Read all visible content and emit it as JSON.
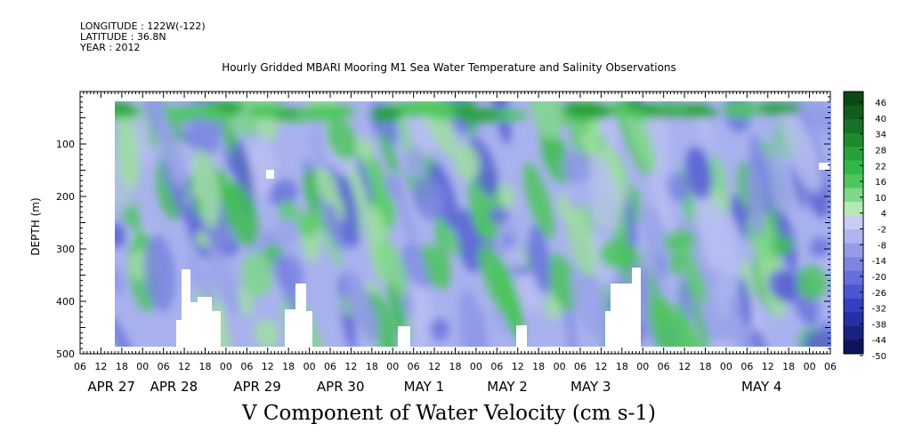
{
  "meta": {
    "longitude": "LONGITUDE : 122W(-122)",
    "latitude": "LATITUDE : 36.8N",
    "year": "YEAR : 2012"
  },
  "chart_data": {
    "type": "heatmap",
    "title": "Hourly Gridded MBARI Mooring M1 Sea Water Temperature and Salinity Observations",
    "xlabel": "V Component of Water Velocity (cm s-1)",
    "ylabel": "DEPTH (m)",
    "y_ticks": [
      100,
      200,
      300,
      400,
      500
    ],
    "y_range": [
      500,
      0
    ],
    "x_hour_labels": [
      "06",
      "12",
      "18",
      "00",
      "06",
      "12",
      "18",
      "00",
      "06",
      "12",
      "18",
      "00",
      "06",
      "12",
      "18",
      "00",
      "06",
      "12",
      "18",
      "00",
      "06",
      "12",
      "18",
      "00",
      "06",
      "12",
      "18",
      "00",
      "06",
      "12",
      "18",
      "00",
      "06",
      "12",
      "18",
      "00",
      "06"
    ],
    "x_date_labels": [
      "APR 27",
      "APR 28",
      "APR 29",
      "APR 30",
      "MAY  1",
      "MAY  2",
      "MAY  3",
      "MAY  4"
    ],
    "colorbar_labels": [
      "46",
      "40",
      "34",
      "28",
      "22",
      "16",
      "10",
      "4",
      "-2",
      "-8",
      "-14",
      "-20",
      "-26",
      "-32",
      "-38",
      "-44",
      "-50"
    ],
    "colorbar_colors": [
      "#0a4a14",
      "#105e1c",
      "#167226",
      "#1e8a30",
      "#26a23a",
      "#32b848",
      "#4ec65c",
      "#7fd88a",
      "#b6e8b6",
      "#c8ccf4",
      "#aeb4ee",
      "#949ce8",
      "#7c86e2",
      "#646edc",
      "#4c56d0",
      "#3440c0",
      "#2430a4",
      "#1a2280",
      "#0e145a"
    ],
    "color_scale": {
      "low": -50,
      "high": 46,
      "grid": "off",
      "legend": "right"
    }
  }
}
